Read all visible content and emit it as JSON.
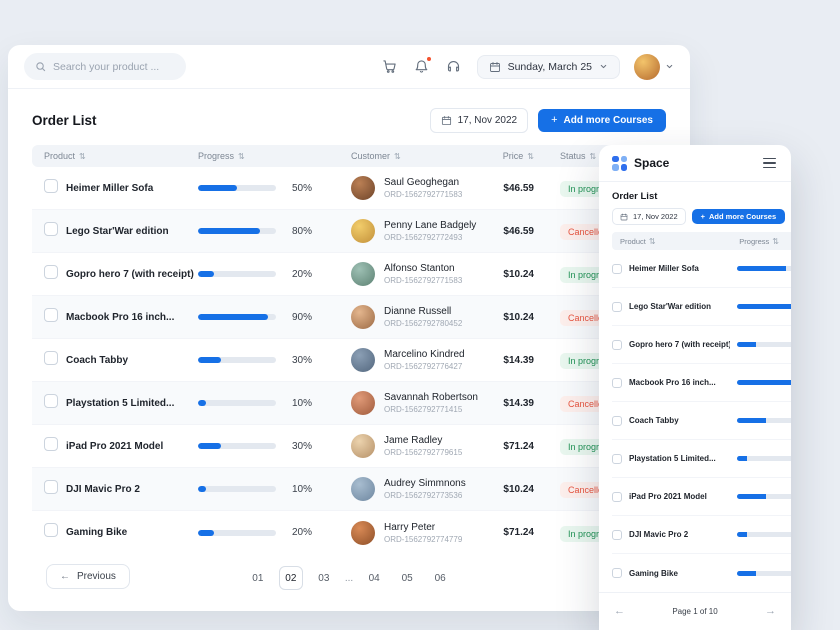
{
  "colors": {
    "accent": "#1670e6",
    "status_in_progress": "#1f9254",
    "status_cancelled": "#e8543f",
    "notification_dot": "#f4522e"
  },
  "icons": {
    "sort": "⇅",
    "plus": "+",
    "arrow_left": "←",
    "arrow_right": "→"
  },
  "topbar": {
    "search_placeholder": "Search your product ...",
    "date_label": "Sunday, March 25"
  },
  "main": {
    "title": "Order List",
    "date_button": "17, Nov 2022",
    "add_button": "Add more Courses",
    "table": {
      "columns": [
        "Product",
        "Progress",
        "Customer",
        "Price",
        "Status"
      ],
      "rows": [
        {
          "product": "Heimer Miller Sofa",
          "progress": 50,
          "customer": "Saul Geoghegan",
          "order_id": "ORD-1562792771583",
          "price": "$46.59",
          "status": "In progress",
          "status_type": "progress"
        },
        {
          "product": "Lego Star'War edition",
          "progress": 80,
          "customer": "Penny Lane Badgely",
          "order_id": "ORD-1562792772493",
          "price": "$46.59",
          "status": "Cancelled",
          "status_type": "cancelled"
        },
        {
          "product": "Gopro hero 7 (with receipt)",
          "progress": 20,
          "customer": "Alfonso Stanton",
          "order_id": "ORD-1562792771583",
          "price": "$10.24",
          "status": "In progress",
          "status_type": "progress"
        },
        {
          "product": "Macbook Pro 16 inch...",
          "progress": 90,
          "customer": "Dianne Russell",
          "order_id": "ORD-1562792780452",
          "price": "$10.24",
          "status": "Cancelled",
          "status_type": "cancelled"
        },
        {
          "product": "Coach Tabby",
          "progress": 30,
          "customer": "Marcelino Kindred",
          "order_id": "ORD-1562792776427",
          "price": "$14.39",
          "status": "In progress",
          "status_type": "progress"
        },
        {
          "product": "Playstation 5 Limited...",
          "progress": 10,
          "customer": "Savannah Robertson",
          "order_id": "ORD-1562792771415",
          "price": "$14.39",
          "status": "Cancelled",
          "status_type": "cancelled"
        },
        {
          "product": "iPad Pro 2021 Model",
          "progress": 30,
          "customer": "Jame Radley",
          "order_id": "ORD-1562792779615",
          "price": "$71.24",
          "status": "In progress",
          "status_type": "progress"
        },
        {
          "product": "DJI Mavic Pro 2",
          "progress": 10,
          "customer": "Audrey Simmnons",
          "order_id": "ORD-1562792773536",
          "price": "$10.24",
          "status": "Cancelled",
          "status_type": "cancelled"
        },
        {
          "product": "Gaming Bike",
          "progress": 20,
          "customer": "Harry Peter",
          "order_id": "ORD-1562792774779",
          "price": "$71.24",
          "status": "In progress",
          "status_type": "progress"
        }
      ]
    },
    "pagination": {
      "previous": "Previous",
      "pages": [
        "01",
        "02",
        "03",
        "...",
        "04",
        "05",
        "06"
      ],
      "current": "02"
    }
  },
  "panel": {
    "brand": "Space",
    "title": "Order List",
    "date_button": "17, Nov 2022",
    "add_button": "Add more Courses",
    "columns": [
      "Product",
      "Progress"
    ],
    "rows": [
      {
        "product": "Heimer Miller Sofa",
        "progress": 50
      },
      {
        "product": "Lego Star'War edition",
        "progress": 80
      },
      {
        "product": "Gopro hero 7 (with receipt)",
        "progress": 20
      },
      {
        "product": "Macbook Pro 16 inch...",
        "progress": 90
      },
      {
        "product": "Coach Tabby",
        "progress": 30
      },
      {
        "product": "Playstation 5 Limited...",
        "progress": 10
      },
      {
        "product": "iPad Pro 2021 Model",
        "progress": 30
      },
      {
        "product": "DJI Mavic Pro 2",
        "progress": 10
      },
      {
        "product": "Gaming Bike",
        "progress": 20
      }
    ],
    "footer": "Page 1 of 10"
  }
}
